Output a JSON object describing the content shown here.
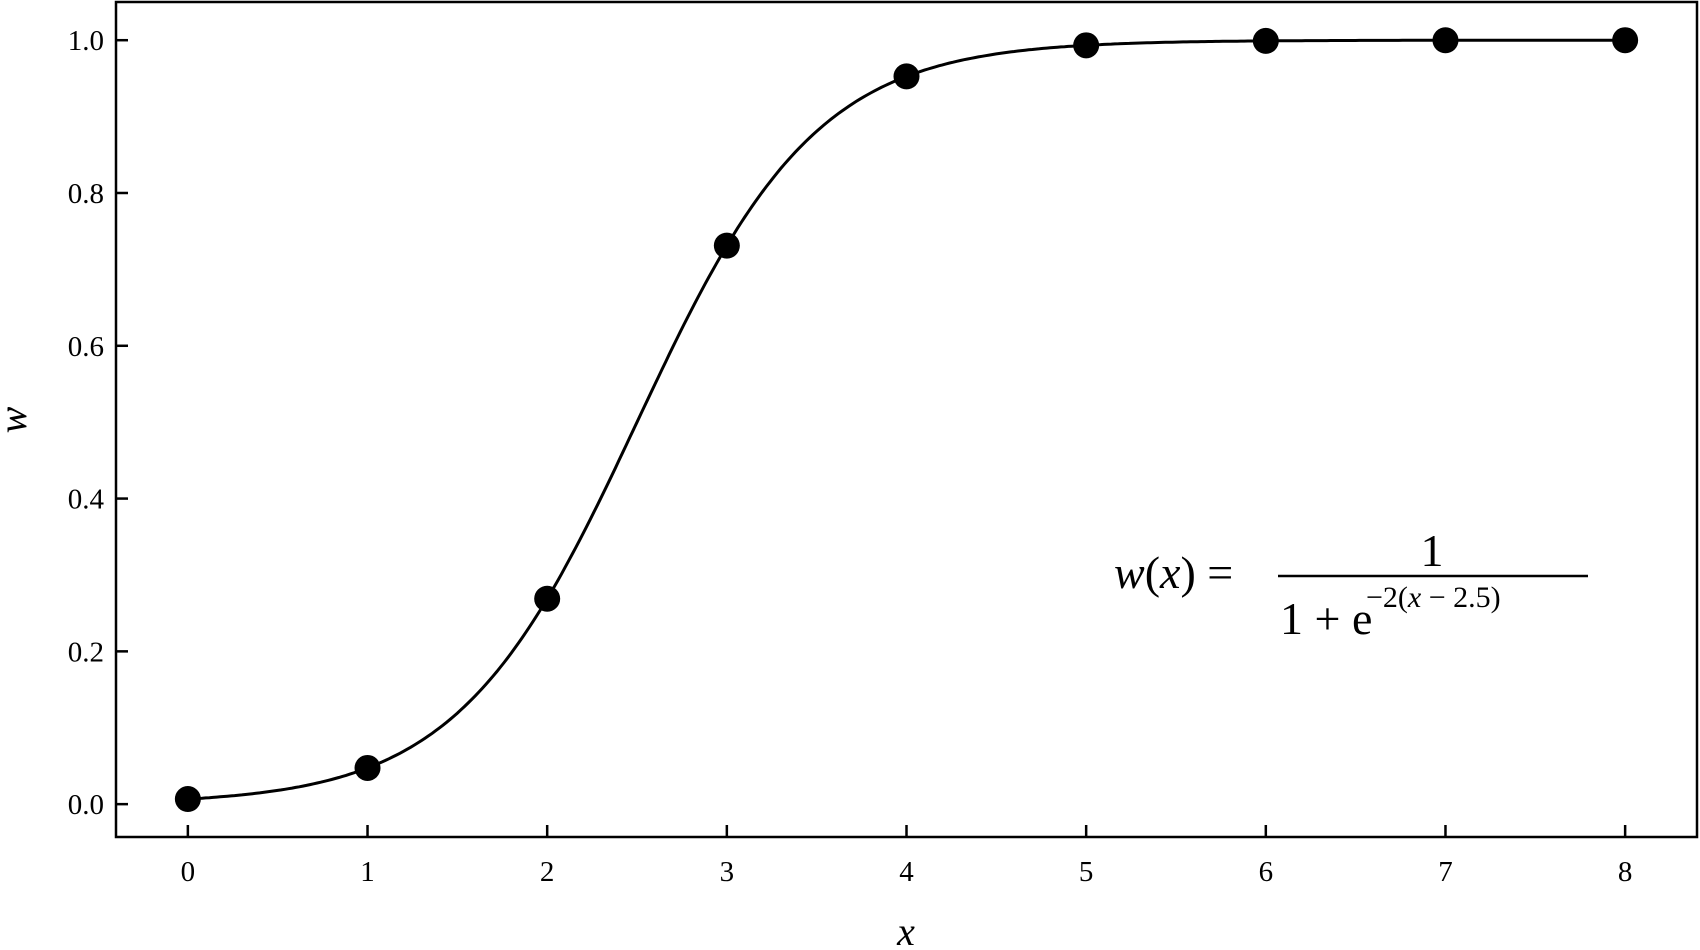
{
  "chart_data": {
    "type": "scatter",
    "title": "",
    "xlabel": "x",
    "ylabel": "w",
    "xlim": [
      -0.4,
      8.4
    ],
    "ylim": [
      -0.043,
      1.05
    ],
    "xticks": [
      "0",
      "1",
      "2",
      "3",
      "4",
      "5",
      "6",
      "7",
      "8"
    ],
    "yticks": [
      "0.0",
      "0.2",
      "0.4",
      "0.6",
      "0.8",
      "1.0"
    ],
    "grid": false,
    "points": {
      "x": [
        0,
        1,
        2,
        3,
        4,
        5,
        6,
        7,
        8
      ],
      "y": [
        0.0067,
        0.0474,
        0.2689,
        0.7311,
        0.9526,
        0.9933,
        0.9991,
        0.9999,
        1.0
      ]
    },
    "curve": {
      "function": "1/(1+exp(-2(x-2.5)))",
      "x_range": [
        0,
        8
      ]
    },
    "annotation": {
      "lhs": "w(x) =",
      "numerator": "1",
      "denominator_base": "1 + e",
      "exponent": "−2(x − 2.5)"
    },
    "colors": {
      "line": "#000000",
      "marker": "#000000"
    }
  }
}
